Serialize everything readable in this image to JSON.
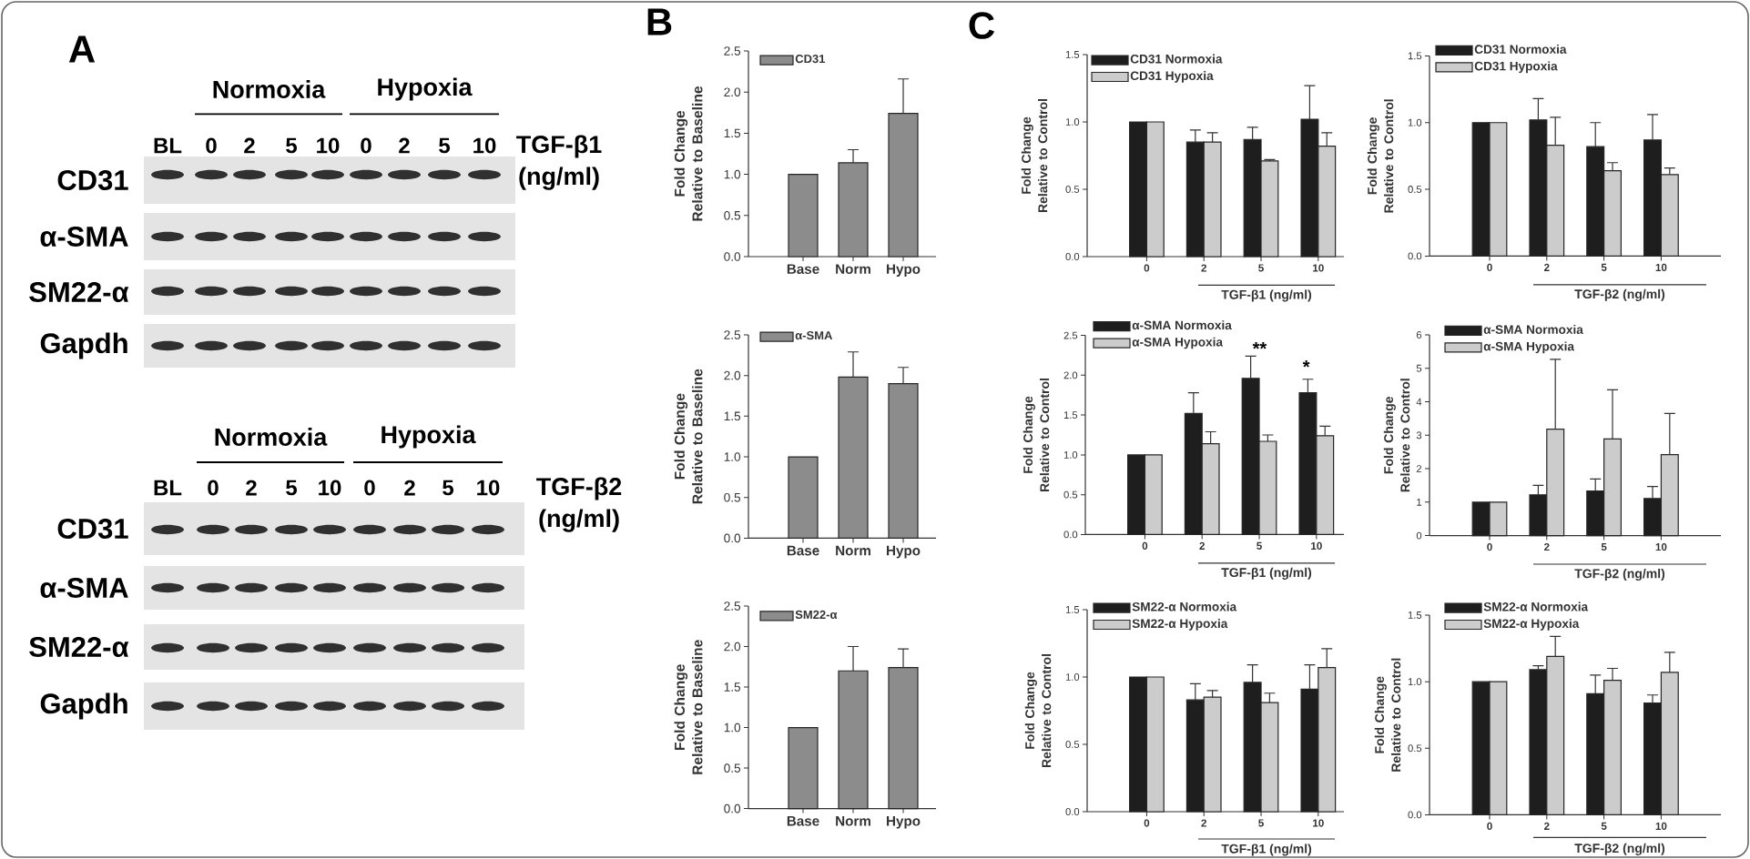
{
  "chart_data": [
    {
      "type": "other",
      "title": "A",
      "categories": [
        "BL",
        "0",
        "2",
        "5",
        "10",
        "0",
        "2",
        "5",
        "10"
      ],
      "y_categories": [
        "CD31",
        "α-SMA",
        "SM22-α",
        "Gapdh"
      ],
      "annotations": [
        "Normoxia",
        "Hypoxia"
      ],
      "xlabel": "TGF-β1 (ng/ml)"
    },
    {
      "type": "other",
      "categories": [
        "BL",
        "0",
        "2",
        "5",
        "10",
        "0",
        "2",
        "5",
        "10"
      ],
      "y_categories": [
        "CD31",
        "α-SMA",
        "SM22-α",
        "Gapdh"
      ],
      "annotations": [
        "Normoxia",
        "Hypoxia"
      ],
      "xlabel": "TGF-β2 (ng/ml)"
    },
    {
      "type": "bar",
      "title": "B",
      "categories": [
        "Base",
        "Norm",
        "Hypo"
      ],
      "ylabel": "Fold Change Relative to Baseline",
      "ylim": [
        0,
        2.5
      ],
      "yticks": [
        {
          "value": 0,
          "label": "0.0"
        },
        0.5,
        {
          "value": 1,
          "label": "1.0"
        },
        1.5,
        {
          "value": 2,
          "label": "2.0"
        },
        2.5
      ],
      "legend": "top left",
      "series": [
        {
          "name": "CD31",
          "color": "#8c8c8c",
          "values": [
            1.0,
            1.14,
            1.74
          ],
          "errors": [
            null,
            [
              1.14,
              1.3
            ],
            [
              1.74,
              2.16
            ]
          ]
        }
      ]
    },
    {
      "type": "bar",
      "categories": [
        "Base",
        "Norm",
        "Hypo"
      ],
      "ylabel": "Fold Change Relative to Baseline",
      "ylim": [
        0,
        2.5
      ],
      "yticks": [
        {
          "value": 0,
          "label": "0.0"
        },
        0.5,
        {
          "value": 1,
          "label": "1.0"
        },
        1.5,
        {
          "value": 2,
          "label": "2.0"
        },
        2.5
      ],
      "legend": "top left",
      "series": [
        {
          "name": "α-SMA",
          "color": "#8c8c8c",
          "values": [
            1.0,
            1.98,
            1.9
          ],
          "errors": [
            null,
            [
              1.98,
              2.29
            ],
            [
              1.9,
              2.1
            ]
          ]
        }
      ]
    },
    {
      "type": "bar",
      "categories": [
        "Base",
        "Norm",
        "Hypo"
      ],
      "ylabel": "Fold Change Relative to Baseline",
      "ylim": [
        0,
        2.5
      ],
      "yticks": [
        {
          "value": 0,
          "label": "0.0"
        },
        0.5,
        {
          "value": 1,
          "label": "1.0"
        },
        1.5,
        {
          "value": 2,
          "label": "2.0"
        },
        2.5
      ],
      "legend": "top left",
      "series": [
        {
          "name": "SM22-α",
          "color": "#8c8c8c",
          "values": [
            1.0,
            1.7,
            1.74
          ],
          "errors": [
            null,
            [
              1.7,
              2.0
            ],
            [
              1.74,
              1.97
            ]
          ]
        }
      ]
    },
    {
      "type": "bar",
      "title": "C",
      "categories": [
        "0",
        "2",
        "5",
        "10"
      ],
      "xlabel": "TGF-β1 (ng/ml)",
      "ylabel": "Fold Change Relative to Control",
      "ylim": [
        0,
        1.5
      ],
      "yticks": [
        {
          "value": 0,
          "label": "0.0"
        },
        0.5,
        {
          "value": 1,
          "label": "1.0"
        },
        1.5
      ],
      "legend": "top left",
      "series": [
        {
          "name": "CD31 Normoxia",
          "color": "#1e1e1e",
          "values": [
            1.0,
            0.85,
            0.87,
            1.02
          ],
          "errors": [
            null,
            [
              0.85,
              0.94
            ],
            [
              0.87,
              0.96
            ],
            [
              1.02,
              1.27
            ]
          ]
        },
        {
          "name": "CD31 Hypoxia",
          "color": "#cccccc",
          "values": [
            1.0,
            0.85,
            0.71,
            0.82
          ],
          "errors": [
            null,
            [
              0.85,
              0.92
            ],
            [
              0.71,
              0.72
            ],
            [
              0.82,
              0.92
            ]
          ]
        }
      ]
    },
    {
      "type": "bar",
      "categories": [
        "0",
        "2",
        "5",
        "10"
      ],
      "xlabel": "TGF-β2 (ng/ml)",
      "ylabel": "Fold Change Relative to Control",
      "ylim": [
        0,
        1.5
      ],
      "yticks": [
        {
          "value": 0,
          "label": "0.0"
        },
        0.5,
        {
          "value": 1,
          "label": "1.0"
        },
        1.5
      ],
      "legend": "top left",
      "series": [
        {
          "name": "CD31 Normoxia",
          "color": "#1e1e1e",
          "values": [
            1.0,
            1.02,
            0.82,
            0.87
          ],
          "errors": [
            null,
            [
              1.02,
              1.18
            ],
            [
              0.82,
              1.0
            ],
            [
              0.87,
              1.06
            ]
          ]
        },
        {
          "name": "CD31 Hypoxia",
          "color": "#cccccc",
          "values": [
            1.0,
            0.83,
            0.64,
            0.61
          ],
          "errors": [
            null,
            [
              0.83,
              1.04
            ],
            [
              0.64,
              0.7
            ],
            [
              0.61,
              0.66
            ]
          ]
        }
      ]
    },
    {
      "type": "bar",
      "categories": [
        "0",
        "2",
        "5",
        "10"
      ],
      "xlabel": "TGF-β1 (ng/ml)",
      "ylabel": "Fold Change Relative to Control",
      "ylim": [
        0,
        2.5
      ],
      "yticks": [
        {
          "value": 0,
          "label": "0.0"
        },
        0.5,
        {
          "value": 1,
          "label": "1.0"
        },
        1.5,
        {
          "value": 2,
          "label": "2.0"
        },
        2.5
      ],
      "legend": "top left",
      "annotations": [
        "**",
        "*"
      ],
      "series": [
        {
          "name": "α-SMA Normoxia",
          "color": "#1e1e1e",
          "values": [
            1.0,
            1.52,
            1.96,
            1.78
          ],
          "errors": [
            null,
            [
              1.52,
              1.78
            ],
            [
              1.96,
              2.24
            ],
            [
              1.78,
              1.95
            ]
          ]
        },
        {
          "name": "α-SMA Hypoxia",
          "color": "#cccccc",
          "values": [
            1.0,
            1.14,
            1.17,
            1.24
          ],
          "errors": [
            null,
            [
              1.14,
              1.29
            ],
            [
              1.17,
              1.25
            ],
            [
              1.24,
              1.36
            ]
          ]
        }
      ]
    },
    {
      "type": "bar",
      "categories": [
        "0",
        "2",
        "5",
        "10"
      ],
      "xlabel": "TGF-β2 (ng/ml)",
      "ylabel": "Fold Change Relative to Control",
      "ylim": [
        0,
        6
      ],
      "yticks": [
        0,
        1,
        2,
        3,
        4,
        5,
        6
      ],
      "legend": "top left",
      "series": [
        {
          "name": "α-SMA Normoxia",
          "color": "#1e1e1e",
          "values": [
            1.0,
            1.22,
            1.33,
            1.11
          ],
          "errors": [
            null,
            [
              1.22,
              1.5
            ],
            [
              1.33,
              1.69
            ],
            [
              1.11,
              1.47
            ]
          ]
        },
        {
          "name": "α-SMA Hypoxia",
          "color": "#cccccc",
          "values": [
            1.0,
            3.18,
            2.89,
            2.42
          ],
          "errors": [
            null,
            [
              3.18,
              5.27
            ],
            [
              2.89,
              4.36
            ],
            [
              2.42,
              3.65
            ]
          ]
        }
      ]
    },
    {
      "type": "bar",
      "categories": [
        "0",
        "2",
        "5",
        "10"
      ],
      "xlabel": "TGF-β1 (ng/ml)",
      "ylabel": "Fold Change Relative to Control",
      "ylim": [
        0,
        1.5
      ],
      "yticks": [
        {
          "value": 0,
          "label": "0.0"
        },
        0.5,
        {
          "value": 1,
          "label": "1.0"
        },
        1.5
      ],
      "legend": "top left",
      "series": [
        {
          "name": "SM22-α Normoxia",
          "color": "#1e1e1e",
          "values": [
            1.0,
            0.83,
            0.96,
            0.91
          ],
          "errors": [
            null,
            [
              0.83,
              0.95
            ],
            [
              0.96,
              1.09
            ],
            [
              0.91,
              1.09
            ]
          ]
        },
        {
          "name": "SM22-α Hypoxia",
          "color": "#cccccc",
          "values": [
            1.0,
            0.85,
            0.81,
            1.07
          ],
          "errors": [
            null,
            [
              0.85,
              0.9
            ],
            [
              0.81,
              0.88
            ],
            [
              1.07,
              1.21
            ]
          ]
        }
      ]
    },
    {
      "type": "bar",
      "categories": [
        "0",
        "2",
        "5",
        "10"
      ],
      "xlabel": "TGF-β2 (ng/ml)",
      "ylabel": "Fold Change Relative to Control",
      "ylim": [
        0,
        1.5
      ],
      "yticks": [
        {
          "value": 0,
          "label": "0.0"
        },
        0.5,
        {
          "value": 1,
          "label": "1.0"
        },
        1.5
      ],
      "legend": "top left",
      "series": [
        {
          "name": "SM22-α Normoxia",
          "color": "#1e1e1e",
          "values": [
            1.0,
            1.09,
            0.91,
            0.84
          ],
          "errors": [
            null,
            [
              1.09,
              1.12
            ],
            [
              0.91,
              1.05
            ],
            [
              0.84,
              0.9
            ]
          ]
        },
        {
          "name": "SM22-α Hypoxia",
          "color": "#cccccc",
          "values": [
            1.0,
            1.19,
            1.01,
            1.07
          ],
          "errors": [
            null,
            [
              1.19,
              1.34
            ],
            [
              1.01,
              1.1
            ],
            [
              1.07,
              1.22
            ]
          ]
        }
      ]
    }
  ]
}
